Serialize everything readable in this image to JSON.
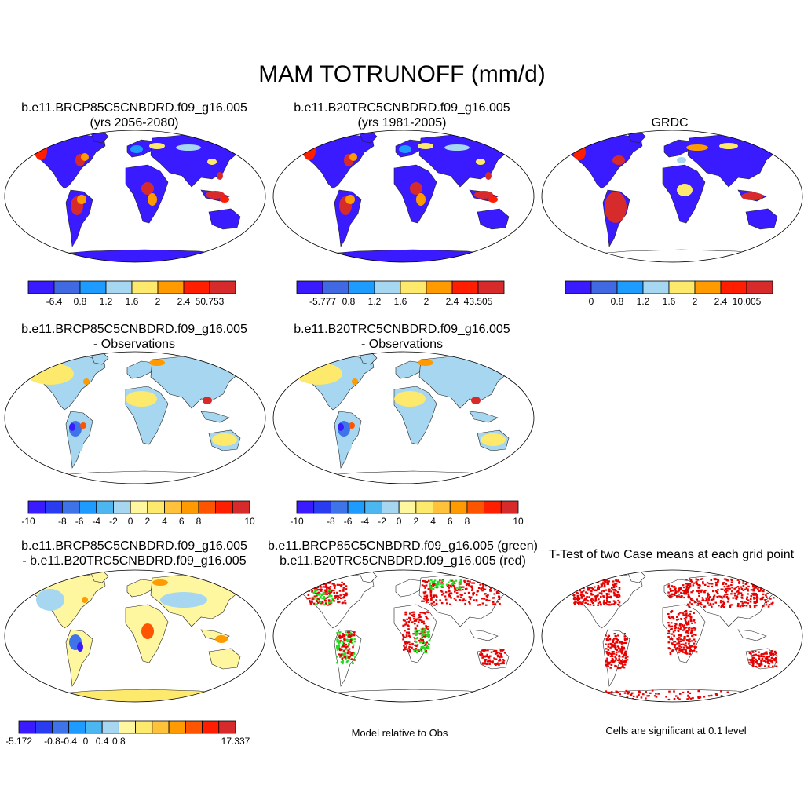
{
  "title": "MAM TOTRUNOFF (mm/d)",
  "panels": [
    {
      "title1": "b.e11.BRCP85C5CNBDRD.f09_g16.005",
      "title2": "(yrs 2056-2080)"
    },
    {
      "title1": "b.e11.B20TRC5CNBDRD.f09_g16.005",
      "title2": "(yrs 1981-2005)"
    },
    {
      "title1": "GRDC",
      "title2": ""
    },
    {
      "title1": "b.e11.BRCP85C5CNBDRD.f09_g16.005",
      "title2": "- Observations"
    },
    {
      "title1": "b.e11.B20TRC5CNBDRD.f09_g16.005",
      "title2": "- Observations"
    },
    {
      "title1": "b.e11.BRCP85C5CNBDRD.f09_g16.005",
      "title2": "- b.e11.B20TRC5CNBDRD.f09_g16.005"
    },
    {
      "title1": "b.e11.BRCP85C5CNBDRD.f09_g16.005 (green)",
      "title2": "b.e11.B20TRC5CNBDRD.f09_g16.005 (red)"
    },
    {
      "title1": "T-Test of two Case means at each grid point",
      "title2": ""
    }
  ],
  "colorbars": [
    {
      "colors": [
        "#3a1aff",
        "#4169e1",
        "#1e9bff",
        "#a6d6f0",
        "#fde96b",
        "#ff9a00",
        "#ff1e00",
        "#d72b2b"
      ],
      "labels": [
        "-6.4",
        "0.8",
        "1.2",
        "1.6",
        "2",
        "2.4",
        "50.753"
      ]
    },
    {
      "colors": [
        "#3a1aff",
        "#4169e1",
        "#1e9bff",
        "#a6d6f0",
        "#fde96b",
        "#ff9a00",
        "#ff1e00",
        "#d72b2b"
      ],
      "labels": [
        "-5.777",
        "0.8",
        "1.2",
        "1.6",
        "2",
        "2.4",
        "43.505"
      ]
    },
    {
      "colors": [
        "#3a1aff",
        "#4169e1",
        "#1e9bff",
        "#a6d6f0",
        "#fde96b",
        "#ff9a00",
        "#ff1e00",
        "#d72b2b"
      ],
      "labels": [
        "0",
        "0.8",
        "1.2",
        "1.6",
        "2",
        "2.4",
        "10.005"
      ]
    },
    {
      "colors": [
        "#3a1aff",
        "#2a3cf0",
        "#3f74e8",
        "#1e9bff",
        "#4cb6f0",
        "#a6d6f0",
        "#fff6a0",
        "#fde96b",
        "#ffc23a",
        "#ff9a00",
        "#ff5500",
        "#ff1e00",
        "#d72b2b"
      ],
      "labels": [
        "-10",
        "-8",
        "-6",
        "-4",
        "-2",
        "0",
        "2",
        "4",
        "6",
        "8",
        "10"
      ]
    },
    {
      "colors": [
        "#3a1aff",
        "#2a3cf0",
        "#3f74e8",
        "#1e9bff",
        "#4cb6f0",
        "#a6d6f0",
        "#fff6a0",
        "#fde96b",
        "#ffc23a",
        "#ff9a00",
        "#ff5500",
        "#ff1e00",
        "#d72b2b"
      ],
      "labels": [
        "-10",
        "-8",
        "-6",
        "-4",
        "-2",
        "0",
        "2",
        "4",
        "6",
        "8",
        "10"
      ]
    },
    {
      "colors": [
        "#3a1aff",
        "#2a3cf0",
        "#3f74e8",
        "#1e9bff",
        "#4cb6f0",
        "#a6d6f0",
        "#fff6a0",
        "#fde96b",
        "#ffc23a",
        "#ff9a00",
        "#ff5500",
        "#ff1e00",
        "#d72b2b"
      ],
      "labels": [
        "-5.172",
        "-0.8",
        "-0.4",
        "0",
        "0.4",
        "0.8",
        "17.337"
      ]
    }
  ],
  "captions": {
    "model_vs_obs": "Model relative to Obs",
    "significance": "Cells are significant at 0.1 level"
  },
  "colors": {
    "land_base_abs": "#3a1aff",
    "land_base_diff": "#a6d6f0",
    "wet_red": "#d72b2b",
    "sig_red": "#e60000",
    "sig_green": "#22dd22"
  }
}
